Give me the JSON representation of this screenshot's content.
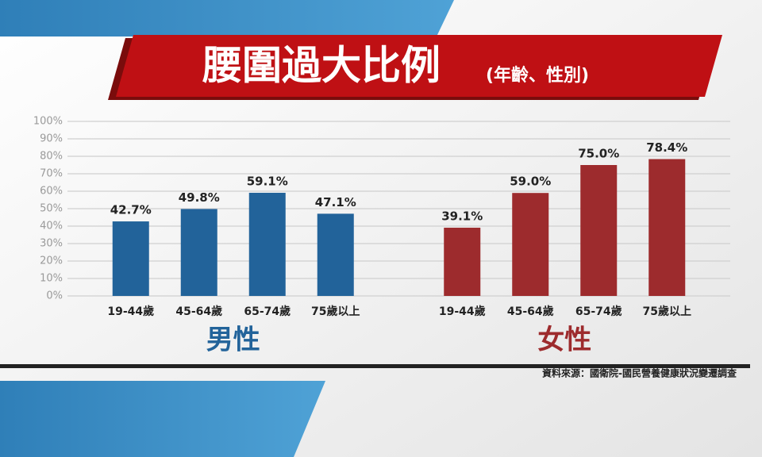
{
  "chart_data": {
    "type": "bar",
    "title": "腰圍過大比例",
    "subtitle": "(年齡、性別)",
    "categories": [
      "19-44歲",
      "45-64歲",
      "65-74歲",
      "75歲以上"
    ],
    "series": [
      {
        "name": "男性",
        "color": "#22639a",
        "values": [
          42.7,
          49.8,
          59.1,
          47.1
        ],
        "value_labels": [
          "42.7%",
          "49.8%",
          "59.1%",
          "47.1%"
        ]
      },
      {
        "name": "女性",
        "color": "#9d2b2d",
        "values": [
          39.1,
          59.0,
          75.0,
          78.4
        ],
        "value_labels": [
          "39.1%",
          "59.0%",
          "75.0%",
          "78.4%"
        ]
      }
    ],
    "ylim": [
      0,
      100
    ],
    "yticks": [
      {
        "value": 0,
        "label": "0%"
      },
      {
        "value": 10,
        "label": "10%"
      },
      {
        "value": 20,
        "label": "20%"
      },
      {
        "value": 30,
        "label": "30%"
      },
      {
        "value": 40,
        "label": "40%"
      },
      {
        "value": 50,
        "label": "50%"
      },
      {
        "value": 60,
        "label": "60%"
      },
      {
        "value": 70,
        "label": "70%"
      },
      {
        "value": 80,
        "label": "80%"
      },
      {
        "value": 90,
        "label": "90%"
      },
      {
        "value": 100,
        "label": "100%"
      }
    ],
    "grid": true,
    "source": "資料來源：國衛院-國民營養健康狀況變遷調查"
  }
}
